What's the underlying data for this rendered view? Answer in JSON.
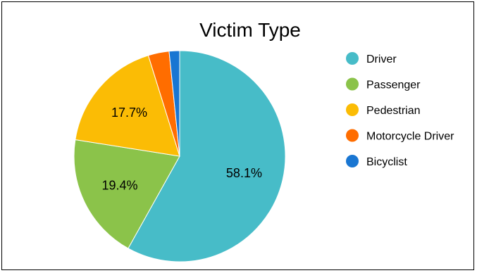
{
  "chart_data": {
    "type": "pie",
    "title": "Victim Type",
    "slices": [
      {
        "name": "Driver",
        "value": 58.1,
        "label": "58.1%",
        "color": "#47BCC8"
      },
      {
        "name": "Passenger",
        "value": 19.4,
        "label": "19.4%",
        "color": "#8BC34A"
      },
      {
        "name": "Pedestrian",
        "value": 17.7,
        "label": "17.7%",
        "color": "#FBBC05"
      },
      {
        "name": "Motorcycle Driver",
        "value": 3.2,
        "label": "",
        "color": "#FF6D00"
      },
      {
        "name": "Bicyclist",
        "value": 1.6,
        "label": "",
        "color": "#1976D2"
      }
    ],
    "legend_placement": "right"
  }
}
